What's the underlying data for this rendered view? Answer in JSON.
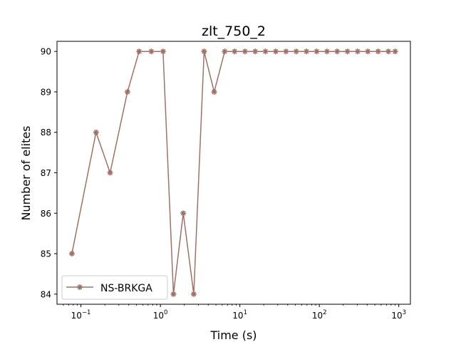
{
  "chart_data": {
    "type": "line",
    "title": "zlt_750_2",
    "xlabel": "Time (s)",
    "ylabel": "Number of elites",
    "xscale": "log",
    "xlim": [
      0.05,
      1400
    ],
    "ylim": [
      83.75,
      90.25
    ],
    "grid": false,
    "legend_position": "bottom-left",
    "x_ticks": [
      {
        "value": 0.1,
        "base": "10",
        "exp": "−1"
      },
      {
        "value": 1,
        "base": "10",
        "exp": "0"
      },
      {
        "value": 10,
        "base": "10",
        "exp": "1"
      },
      {
        "value": 100,
        "base": "10",
        "exp": "2"
      },
      {
        "value": 1000,
        "base": "10",
        "exp": "3"
      }
    ],
    "y_ticks": [
      {
        "value": 84,
        "label": "84"
      },
      {
        "value": 85,
        "label": "85"
      },
      {
        "value": 86,
        "label": "86"
      },
      {
        "value": 87,
        "label": "87"
      },
      {
        "value": 88,
        "label": "88"
      },
      {
        "value": 89,
        "label": "89"
      },
      {
        "value": 90,
        "label": "90"
      }
    ],
    "series": [
      {
        "name": "NS-BRKGA",
        "color": "#9c7268",
        "marker": "star",
        "x": [
          0.077,
          0.155,
          0.233,
          0.385,
          0.54,
          0.77,
          1.08,
          1.46,
          1.94,
          2.63,
          3.55,
          4.75,
          6.45,
          8.6,
          11.6,
          15.6,
          21,
          28.3,
          38.1,
          51.2,
          68.9,
          92.7,
          124.7,
          167.7,
          225.6,
          303.5,
          408.3,
          549.2,
          738.8,
          900
        ],
        "values": [
          85,
          88,
          87,
          89,
          90,
          90,
          90,
          84,
          86,
          84,
          90,
          89,
          90,
          90,
          90,
          90,
          90,
          90,
          90,
          90,
          90,
          90,
          90,
          90,
          90,
          90,
          90,
          90,
          90,
          90
        ]
      }
    ]
  }
}
